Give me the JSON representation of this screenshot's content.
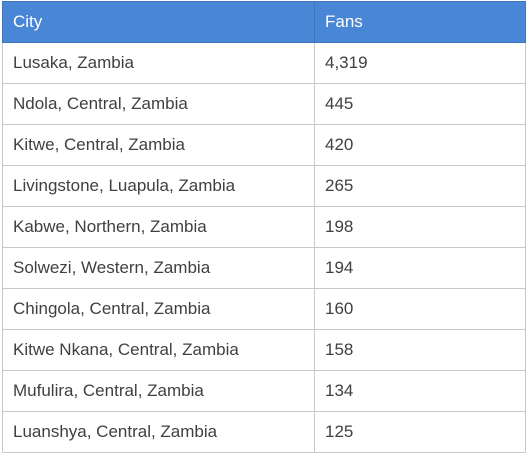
{
  "table": {
    "header": [
      "City",
      "Fans"
    ],
    "rows": [
      [
        "Lusaka, Zambia",
        "4,319"
      ],
      [
        "Ndola, Central, Zambia",
        "445"
      ],
      [
        "Kitwe, Central, Zambia",
        "420"
      ],
      [
        "Livingstone, Luapula, Zambia",
        "265"
      ],
      [
        "Kabwe, Northern, Zambia",
        "198"
      ],
      [
        "Solwezi, Western, Zambia",
        "194"
      ],
      [
        "Chingola, Central, Zambia",
        "160"
      ],
      [
        "Kitwe Nkana, Central, Zambia",
        "158"
      ],
      [
        "Mufulira, Central, Zambia",
        "134"
      ],
      [
        "Luanshya, Central, Zambia",
        "125"
      ]
    ]
  }
}
